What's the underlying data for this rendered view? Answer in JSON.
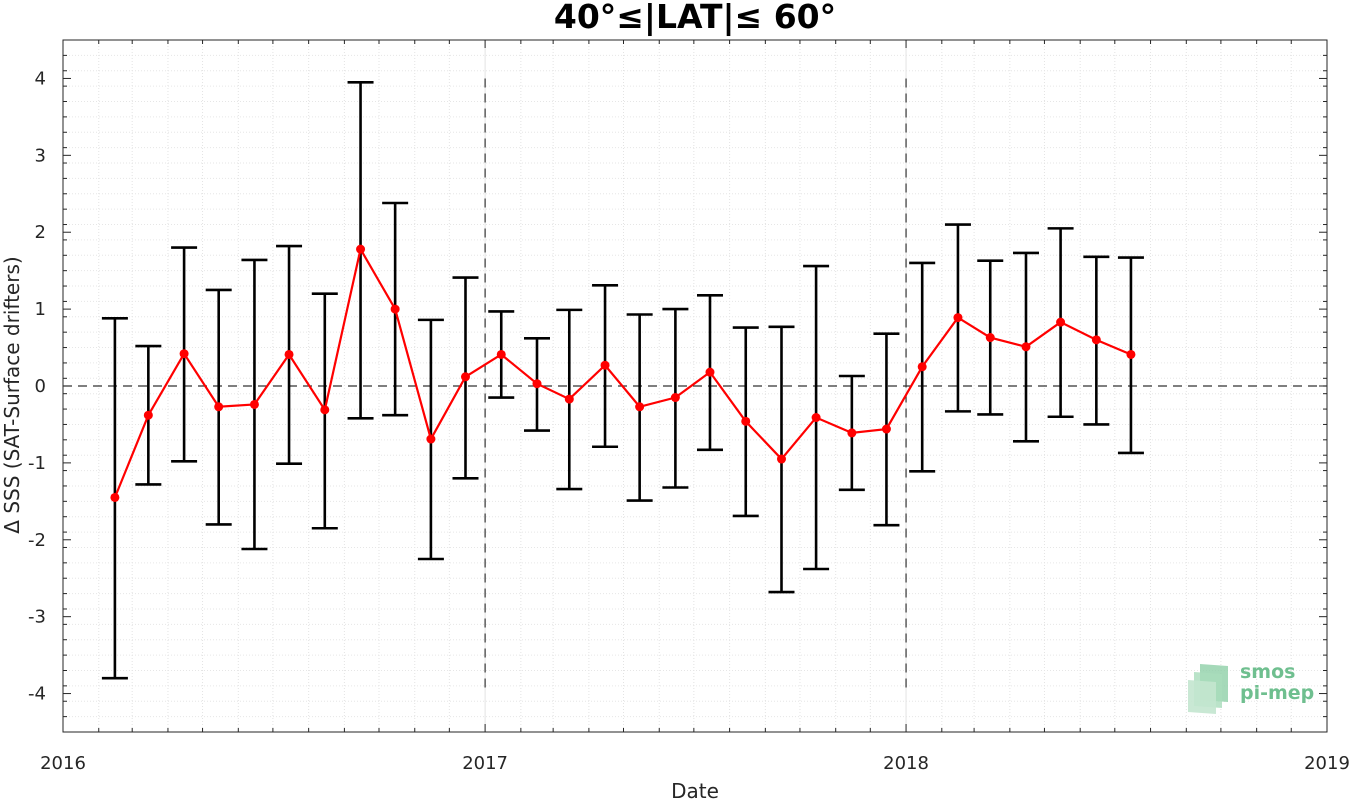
{
  "chart_data": {
    "type": "line",
    "title": "40°≤|LAT|≤ 60°",
    "xlabel": "Date",
    "ylabel": "Δ SSS (SAT-Surface drifters)",
    "x_ticks": [
      "2016",
      "2017",
      "2018",
      "2019"
    ],
    "y_ticks": [
      "4",
      "3",
      "2",
      "1",
      "0",
      "-1",
      "-2",
      "-3",
      "-4"
    ],
    "xlim": [
      "2016-01-01",
      "2019-01-01"
    ],
    "ylim": [
      -4.5,
      4.5
    ],
    "grid": true,
    "reference_line_y": 0,
    "year_markers": [
      "2017-01-01",
      "2018-01-01"
    ],
    "series": [
      {
        "color": "#ff0000",
        "error_bar_color": "#000000",
        "x": [
          "2016-02-15",
          "2016-03-15",
          "2016-04-15",
          "2016-05-15",
          "2016-06-15",
          "2016-07-15",
          "2016-08-15",
          "2016-09-15",
          "2016-10-15",
          "2016-11-15",
          "2016-12-15",
          "2017-01-15",
          "2017-02-15",
          "2017-03-15",
          "2017-04-15",
          "2017-05-15",
          "2017-06-15",
          "2017-07-15",
          "2017-08-15",
          "2017-09-15",
          "2017-10-15",
          "2017-11-15",
          "2017-12-15",
          "2018-01-15",
          "2018-02-15",
          "2018-03-15",
          "2018-04-15",
          "2018-05-15",
          "2018-06-15",
          "2018-07-15"
        ],
        "values": [
          -1.45,
          -0.38,
          0.42,
          -0.27,
          -0.24,
          0.41,
          -0.31,
          1.78,
          1.0,
          -0.69,
          0.12,
          0.41,
          0.03,
          -0.17,
          0.27,
          -0.27,
          -0.15,
          0.18,
          -0.46,
          -0.95,
          -0.41,
          -0.61,
          -0.56,
          0.25,
          0.89,
          0.63,
          0.51,
          0.83,
          0.6,
          0.41
        ],
        "upper": [
          0.88,
          0.52,
          1.8,
          1.25,
          1.64,
          1.82,
          1.2,
          3.95,
          2.38,
          0.86,
          1.41,
          0.97,
          0.62,
          0.99,
          1.31,
          0.93,
          1.0,
          1.18,
          0.76,
          0.77,
          1.56,
          0.13,
          0.68,
          1.6,
          2.1,
          1.63,
          1.73,
          2.05,
          1.68,
          1.67
        ],
        "lower": [
          -3.8,
          -1.28,
          -0.98,
          -1.8,
          -2.12,
          -1.01,
          -1.85,
          -0.42,
          -0.38,
          -2.25,
          -1.2,
          -0.15,
          -0.58,
          -1.34,
          -0.79,
          -1.49,
          -1.32,
          -0.83,
          -1.69,
          -2.68,
          -2.38,
          -1.35,
          -1.81,
          -1.11,
          -0.33,
          -0.37,
          -0.72,
          -0.4,
          -0.5,
          -0.87
        ]
      }
    ]
  },
  "logo": {
    "line1": "smos",
    "line2": "pi-mep",
    "color": "#6fbf8f"
  }
}
